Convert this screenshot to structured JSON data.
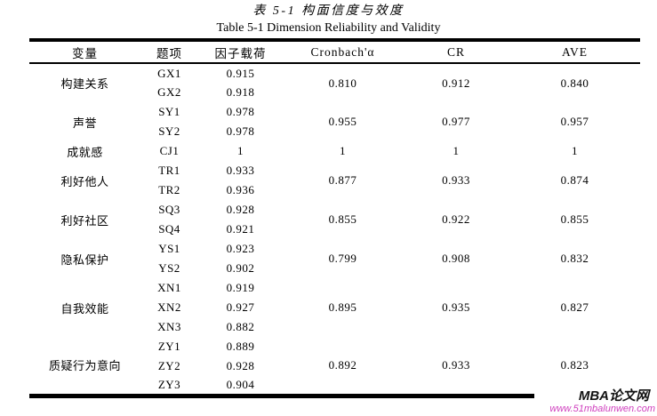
{
  "page": {
    "title_zh": "表 5-1 构面信度与效度",
    "title_en": "Table 5-1 Dimension Reliability and Validity"
  },
  "table": {
    "headers": [
      "变量",
      "题项",
      "因子载荷",
      "Cronbach'α",
      "CR",
      "AVE"
    ],
    "groups": [
      {
        "variable": "构建关系",
        "items": [
          {
            "code": "GX1",
            "loading": "0.915"
          },
          {
            "code": "GX2",
            "loading": "0.918"
          }
        ],
        "cronbach": "0.810",
        "cr": "0.912",
        "ave": "0.840"
      },
      {
        "variable": "声誉",
        "items": [
          {
            "code": "SY1",
            "loading": "0.978"
          },
          {
            "code": "SY2",
            "loading": "0.978"
          }
        ],
        "cronbach": "0.955",
        "cr": "0.977",
        "ave": "0.957"
      },
      {
        "variable": "成就感",
        "items": [
          {
            "code": "CJ1",
            "loading": "1"
          }
        ],
        "cronbach": "1",
        "cr": "1",
        "ave": "1"
      },
      {
        "variable": "利好他人",
        "items": [
          {
            "code": "TR1",
            "loading": "0.933"
          },
          {
            "code": "TR2",
            "loading": "0.936"
          }
        ],
        "cronbach": "0.877",
        "cr": "0.933",
        "ave": "0.874"
      },
      {
        "variable": "利好社区",
        "items": [
          {
            "code": "SQ3",
            "loading": "0.928"
          },
          {
            "code": "SQ4",
            "loading": "0.921"
          }
        ],
        "cronbach": "0.855",
        "cr": "0.922",
        "ave": "0.855"
      },
      {
        "variable": "隐私保护",
        "items": [
          {
            "code": "YS1",
            "loading": "0.923"
          },
          {
            "code": "YS2",
            "loading": "0.902"
          }
        ],
        "cronbach": "0.799",
        "cr": "0.908",
        "ave": "0.832"
      },
      {
        "variable": "自我效能",
        "items": [
          {
            "code": "XN1",
            "loading": "0.919"
          },
          {
            "code": "XN2",
            "loading": "0.927"
          },
          {
            "code": "XN3",
            "loading": "0.882"
          }
        ],
        "cronbach": "0.895",
        "cr": "0.935",
        "ave": "0.827"
      },
      {
        "variable": "质疑行为意向",
        "items": [
          {
            "code": "ZY1",
            "loading": "0.889"
          },
          {
            "code": "ZY2",
            "loading": "0.928"
          },
          {
            "code": "ZY3",
            "loading": "0.904"
          }
        ],
        "cronbach": "0.892",
        "cr": "0.933",
        "ave": "0.823"
      }
    ]
  },
  "watermark": {
    "brand": "MBA论文网",
    "url": "www.51mbalunwen.com",
    "brand_color": "#121212",
    "url_color": "#cf3fbe"
  }
}
